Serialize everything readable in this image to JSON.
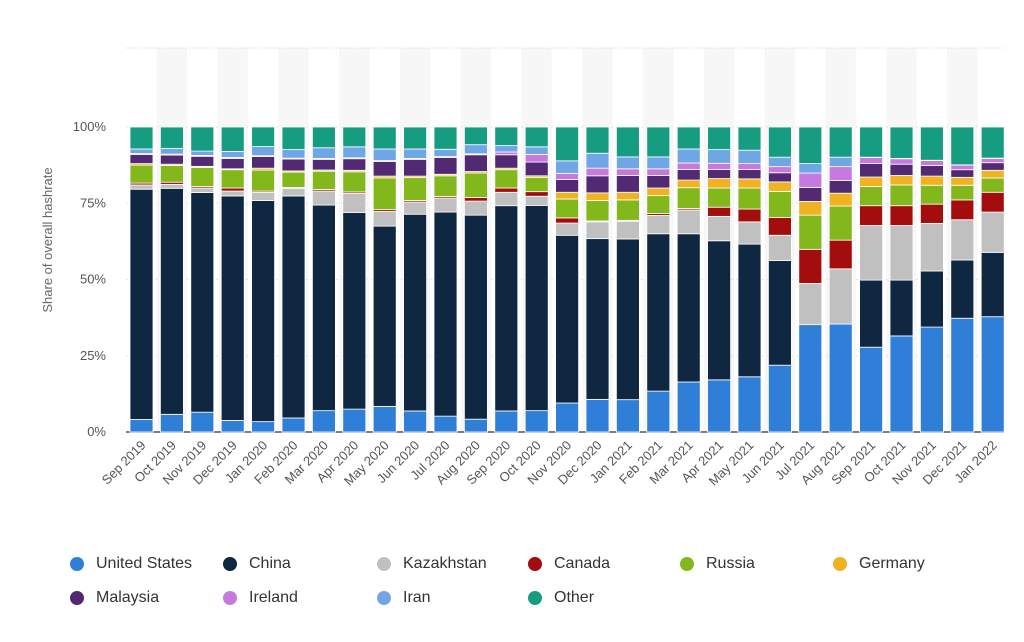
{
  "chart_data": {
    "type": "bar",
    "stacked": true,
    "title": "",
    "xlabel": "",
    "ylabel": "Share of overall hashrate",
    "ylim": [
      0,
      100
    ],
    "yticks": [
      0,
      25,
      50,
      75,
      100
    ],
    "ytick_labels": [
      "0%",
      "25%",
      "50%",
      "75%",
      "100%"
    ],
    "legend_position": "bottom",
    "categories": [
      "Sep 2019",
      "Oct 2019",
      "Nov 2019",
      "Dec 2019",
      "Jan 2020",
      "Feb 2020",
      "Mar 2020",
      "Apr 2020",
      "May 2020",
      "Jun 2020",
      "Jul 2020",
      "Aug 2020",
      "Sep 2020",
      "Oct 2020",
      "Nov 2020",
      "Dec 2020",
      "Jan 2021",
      "Feb 2021",
      "Mar 2021",
      "Apr 2021",
      "May 2021",
      "Jun 2021",
      "Jul 2021",
      "Aug 2021",
      "Sep 2021",
      "Oct 2021",
      "Nov 2021",
      "Dec 2021",
      "Jan 2022"
    ],
    "series": [
      {
        "name": "United States",
        "color": "#2f7ed8",
        "values": [
          4.1,
          5.8,
          6.5,
          3.8,
          3.4,
          4.6,
          7.0,
          7.5,
          8.4,
          6.9,
          5.2,
          4.2,
          6.9,
          7.0,
          9.5,
          10.7,
          10.6,
          13.4,
          16.4,
          17.1,
          18.1,
          21.9,
          35.2,
          35.4,
          27.8,
          31.5,
          34.4,
          37.3,
          37.8
        ]
      },
      {
        "name": "China",
        "color": "#0f2740",
        "values": [
          75.5,
          74.1,
          72.0,
          73.6,
          72.5,
          72.8,
          67.4,
          64.5,
          59.1,
          64.5,
          66.9,
          66.9,
          67.3,
          67.3,
          55.0,
          52.7,
          52.7,
          51.6,
          48.6,
          45.6,
          43.5,
          34.3,
          0,
          0,
          22.0,
          18.3,
          18.4,
          19.1,
          21.1
        ]
      },
      {
        "name": "Kazakhstan",
        "color": "#c0c0c0",
        "values": [
          1.4,
          1.3,
          1.5,
          1.6,
          2.7,
          2.5,
          4.6,
          6.2,
          4.8,
          4.0,
          4.6,
          4.6,
          4.4,
          3.0,
          4.0,
          5.5,
          5.8,
          6.0,
          7.8,
          8.0,
          7.3,
          8.3,
          13.5,
          18.1,
          17.9,
          17.9,
          15.6,
          13.2,
          13.2
        ]
      },
      {
        "name": "Canada",
        "color": "#a30d0d",
        "values": [
          0.6,
          0.7,
          0.5,
          1.0,
          0.4,
          0.3,
          0.5,
          0.5,
          0.6,
          0.5,
          0.5,
          1.2,
          1.4,
          1.5,
          1.7,
          0.3,
          0.3,
          0.6,
          0.5,
          3.0,
          4.2,
          5.8,
          11.2,
          9.4,
          6.5,
          6.5,
          6.3,
          6.5,
          6.5
        ]
      },
      {
        "name": "Russia",
        "color": "#82b81c",
        "values": [
          5.9,
          5.5,
          6.2,
          6.0,
          6.9,
          5.0,
          6.0,
          6.6,
          10.4,
          7.5,
          6.8,
          8.0,
          6.0,
          4.7,
          6.2,
          6.7,
          6.7,
          5.9,
          6.8,
          6.3,
          6.9,
          8.6,
          11.2,
          11.2,
          6.3,
          6.8,
          6.2,
          4.8,
          4.7
        ]
      },
      {
        "name": "Germany",
        "color": "#f0b220",
        "values": [
          0.5,
          0.4,
          0.4,
          0.3,
          0.6,
          0.4,
          0.4,
          0.5,
          0.6,
          0.5,
          0.5,
          0.5,
          0.5,
          0.5,
          2.2,
          2.5,
          2.5,
          2.5,
          2.5,
          3.1,
          3.0,
          3.1,
          4.5,
          4.2,
          3.1,
          3.1,
          3.0,
          2.6,
          2.5
        ]
      },
      {
        "name": "Malaysia",
        "color": "#512a73",
        "values": [
          3.0,
          3.0,
          3.3,
          3.4,
          3.8,
          3.9,
          3.5,
          3.8,
          4.8,
          5.5,
          5.5,
          5.5,
          4.4,
          4.5,
          4.2,
          5.6,
          5.5,
          4.1,
          3.5,
          3.0,
          3.1,
          3.0,
          4.6,
          4.2,
          4.4,
          3.7,
          3.5,
          2.5,
          2.5
        ]
      },
      {
        "name": "Ireland",
        "color": "#c67ae0",
        "values": [
          0.3,
          0.3,
          0.3,
          0.3,
          0.3,
          0.3,
          0.3,
          0.3,
          0.3,
          0.3,
          0.3,
          0.3,
          0.9,
          2.5,
          2.0,
          2.5,
          2.2,
          2.2,
          2.1,
          2.0,
          1.9,
          2.0,
          4.7,
          4.5,
          2.0,
          1.8,
          1.6,
          1.5,
          1.4
        ]
      },
      {
        "name": "Iran",
        "color": "#6fa6e6",
        "values": [
          1.5,
          1.9,
          1.4,
          2.0,
          3.0,
          2.8,
          3.5,
          3.6,
          3.8,
          3.1,
          2.4,
          3.0,
          2.1,
          2.5,
          4.1,
          4.9,
          3.9,
          3.9,
          4.6,
          4.5,
          4.4,
          3.1,
          3.1,
          3.1,
          0.1,
          0.1,
          0.1,
          0.1,
          0.1
        ]
      },
      {
        "name": "Other",
        "color": "#169c80",
        "values": [
          7.2,
          7.0,
          7.9,
          8.0,
          6.4,
          7.4,
          6.8,
          6.5,
          7.2,
          7.2,
          7.3,
          5.8,
          6.1,
          6.5,
          11.1,
          8.6,
          9.8,
          9.8,
          7.2,
          7.4,
          7.6,
          9.9,
          12.0,
          9.9,
          9.9,
          10.3,
          10.9,
          12.4,
          10.2
        ]
      }
    ]
  }
}
